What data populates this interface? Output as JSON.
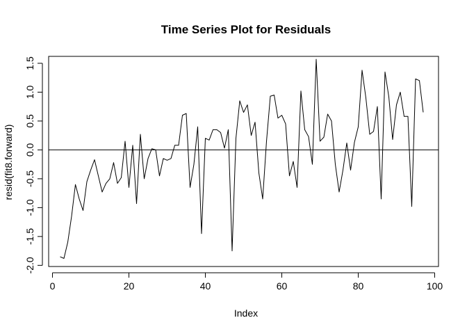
{
  "chart_data": {
    "type": "line",
    "title": "Time Series Plot for Residuals",
    "xlabel": "Index",
    "ylabel": "resid(fit8.forward)",
    "xlim": [
      -1,
      101
    ],
    "ylim": [
      -2.02,
      1.62
    ],
    "x_ticks": [
      0,
      20,
      40,
      60,
      80,
      100
    ],
    "y_ticks": [
      -2.0,
      -1.5,
      -1.0,
      -0.5,
      0.0,
      0.5,
      1.0,
      1.5
    ],
    "x_tick_labels": [
      "0",
      "20",
      "40",
      "60",
      "80",
      "100"
    ],
    "y_tick_labels": [
      "-2.0",
      "-1.5",
      "-1.0",
      "-0.5",
      "0.0",
      "0.5",
      "1.0",
      "1.5"
    ],
    "reference_line_y": 0,
    "grid": false,
    "series": [
      {
        "color": "#000000",
        "x": [
          2,
          3,
          4,
          5,
          6,
          7,
          8,
          9,
          10,
          11,
          12,
          13,
          14,
          15,
          16,
          17,
          18,
          19,
          20,
          21,
          22,
          23,
          24,
          25,
          26,
          27,
          28,
          29,
          30,
          31,
          32,
          33,
          34,
          35,
          36,
          37,
          38,
          39,
          40,
          41,
          42,
          43,
          44,
          45,
          46,
          47,
          48,
          49,
          50,
          51,
          52,
          53,
          54,
          55,
          56,
          57,
          58,
          59,
          60,
          61,
          62,
          63,
          64,
          65,
          66,
          67,
          68,
          69,
          70,
          71,
          72,
          73,
          74,
          75,
          76,
          77,
          78,
          79,
          80,
          81,
          82,
          83,
          84,
          85,
          86,
          87,
          88,
          89,
          90,
          91,
          92,
          93,
          94,
          95,
          96,
          97
        ],
        "values": [
          -1.85,
          -1.88,
          -1.6,
          -1.15,
          -0.6,
          -0.85,
          -1.05,
          -0.55,
          -0.35,
          -0.17,
          -0.45,
          -0.73,
          -0.58,
          -0.5,
          -0.22,
          -0.58,
          -0.48,
          0.15,
          -0.65,
          0.08,
          -0.93,
          0.27,
          -0.5,
          -0.15,
          0.02,
          0.0,
          -0.45,
          -0.15,
          -0.18,
          -0.15,
          0.08,
          0.08,
          0.6,
          0.63,
          -0.65,
          -0.25,
          0.4,
          -1.45,
          0.2,
          0.17,
          0.35,
          0.35,
          0.3,
          0.03,
          0.35,
          -1.75,
          0.2,
          0.85,
          0.65,
          0.78,
          0.25,
          0.48,
          -0.4,
          -0.85,
          0.15,
          0.93,
          0.95,
          0.55,
          0.6,
          0.45,
          -0.45,
          -0.2,
          -0.65,
          1.02,
          0.35,
          0.23,
          -0.25,
          1.57,
          0.15,
          0.22,
          0.62,
          0.5,
          -0.25,
          -0.73,
          -0.35,
          0.12,
          -0.35,
          0.13,
          0.4,
          1.38,
          0.9,
          0.27,
          0.32,
          0.75,
          -0.85,
          1.35,
          0.92,
          0.18,
          0.78,
          1.0,
          0.58,
          0.58,
          -0.98,
          1.23,
          1.2,
          0.65
        ]
      }
    ]
  }
}
